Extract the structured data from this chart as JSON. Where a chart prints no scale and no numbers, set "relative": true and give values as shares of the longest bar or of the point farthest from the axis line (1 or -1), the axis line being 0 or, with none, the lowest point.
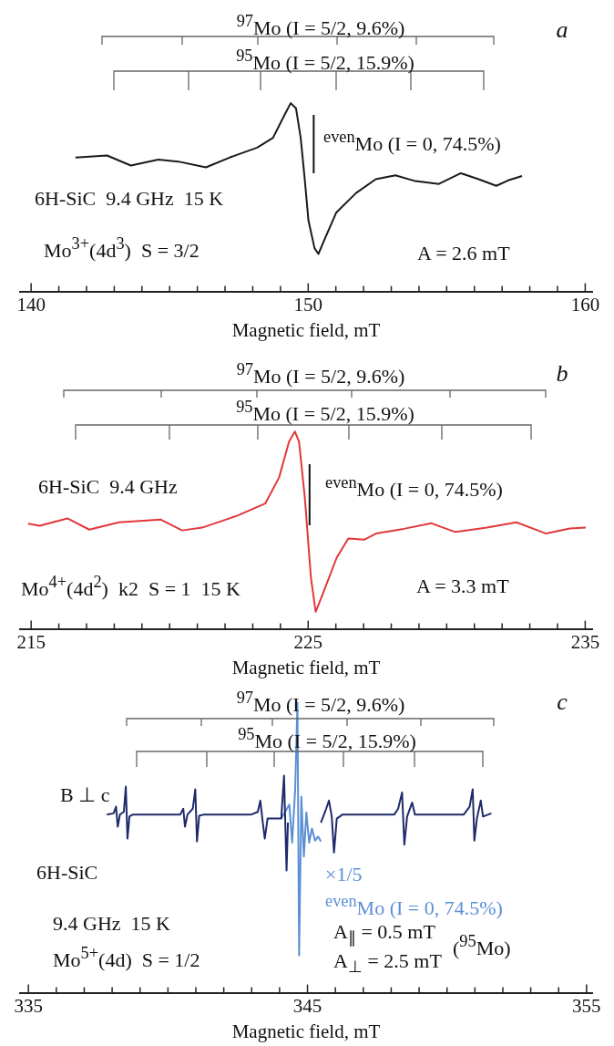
{
  "chart_data": [
    {
      "type": "line",
      "title": "a",
      "xlabel": "Magnetic field, mT",
      "relative": true,
      "tick_labels": "x",
      "xlim": [
        139.6,
        160.25
      ],
      "xticks": [
        140,
        {
          "value": 141,
          "label": null
        },
        {
          "value": 142,
          "label": null
        },
        {
          "value": 143,
          "label": null
        },
        {
          "value": 144,
          "label": null
        },
        {
          "value": 145,
          "label": null
        },
        {
          "value": 146,
          "label": null
        },
        {
          "value": 147,
          "label": null
        },
        {
          "value": 148,
          "label": null
        },
        {
          "value": 149,
          "label": null
        },
        150,
        {
          "value": 151,
          "label": null
        },
        {
          "value": 152,
          "label": null
        },
        {
          "value": 153,
          "label": null
        },
        {
          "value": 154,
          "label": null
        },
        {
          "value": 155,
          "label": null
        },
        {
          "value": 156,
          "label": null
        },
        {
          "value": 157,
          "label": null
        },
        {
          "value": 158,
          "label": null
        },
        {
          "value": 159,
          "label": null
        },
        160
      ],
      "ref_lines": [
        {
          "axis": "x",
          "value": 150.2
        }
      ],
      "annotations": [
        "$^{97}$Mo (I = 5/2, 9.6%)",
        "$^{95}$Mo (I = 5/2, 15.9%)",
        "6H-SiC  9.4 GHz  15 K",
        "Mo$^{3+}$(4d$^{3}$)  S = 3/2",
        "A = 2.6 mT",
        "$^{even}$Mo (I = 0, 74.5%)"
      ],
      "series": [
        {
          "color": "#1a1a1a",
          "x": [
            141.6,
            142.74,
            143.6,
            144.59,
            145.31,
            146.31,
            147.16,
            148.16,
            148.73,
            149.16,
            149.37,
            149.56,
            149.73,
            149.87,
            150.01,
            150.23,
            150.37,
            150.58,
            151.01,
            151.73,
            152.44,
            153.15,
            153.87,
            154.72,
            155.51,
            156.15,
            156.79,
            157.22,
            157.72
          ],
          "values": [
            0.711,
            0.722,
            0.669,
            0.7,
            0.69,
            0.659,
            0.711,
            0.764,
            0.816,
            0.941,
            1,
            0.973,
            0.816,
            0.607,
            0.377,
            0.23,
            0.199,
            0.272,
            0.418,
            0.523,
            0.596,
            0.617,
            0.586,
            0.571,
            0.628,
            0.596,
            0.561,
            0.59,
            0.613
          ]
        }
      ]
    },
    {
      "type": "line",
      "title": "b",
      "xlabel": "Magnetic field, mT",
      "relative": true,
      "tick_labels": "x",
      "xlim": [
        214.6,
        235.25
      ],
      "xticks": [
        215,
        {
          "value": 216,
          "label": null
        },
        {
          "value": 217,
          "label": null
        },
        {
          "value": 218,
          "label": null
        },
        {
          "value": 219,
          "label": null
        },
        {
          "value": 220,
          "label": null
        },
        {
          "value": 221,
          "label": null
        },
        {
          "value": 222,
          "label": null
        },
        {
          "value": 223,
          "label": null
        },
        {
          "value": 224,
          "label": null
        },
        225,
        {
          "value": 226,
          "label": null
        },
        {
          "value": 227,
          "label": null
        },
        {
          "value": 228,
          "label": null
        },
        {
          "value": 229,
          "label": null
        },
        {
          "value": 230,
          "label": null
        },
        {
          "value": 231,
          "label": null
        },
        {
          "value": 232,
          "label": null
        },
        {
          "value": 233,
          "label": null
        },
        {
          "value": 234,
          "label": null
        },
        235
      ],
      "ref_lines": [
        {
          "axis": "x",
          "value": 225.05
        }
      ],
      "annotations": [
        "$^{97}$Mo (I = 5/2, 9.6%)",
        "$^{95}$Mo (I = 5/2, 15.9%)",
        "6H-SiC  9.4 GHz",
        "Mo$^{4+}$(4d$^{2}$)  k2  S = 1  15 K",
        "A = 3.3 mT",
        "$^{even}$Mo (I = 0, 74.5%)"
      ],
      "series": [
        {
          "color": "#e0383a",
          "x": [
            214.89,
            215.31,
            216.31,
            217.1,
            218.17,
            219.67,
            220.45,
            221.17,
            222.45,
            223.45,
            223.95,
            224.31,
            224.52,
            224.67,
            224.88,
            225.1,
            225.27,
            225.53,
            226.03,
            226.45,
            227.02,
            227.45,
            228.45,
            229.45,
            230.31,
            231.45,
            232.52,
            233.59,
            234.45,
            235.02
          ],
          "values": [
            0.533,
            0.523,
            0.56,
            0.503,
            0.54,
            0.554,
            0.499,
            0.513,
            0.574,
            0.635,
            0.767,
            0.949,
            1,
            0.949,
            0.665,
            0.26,
            0.087,
            0.178,
            0.361,
            0.458,
            0.452,
            0.483,
            0.507,
            0.535,
            0.491,
            0.513,
            0.54,
            0.483,
            0.509,
            0.513
          ]
        }
      ]
    },
    {
      "type": "line",
      "title": "c",
      "xlabel": "Magnetic field, mT",
      "relative": true,
      "tick_labels": "x",
      "xlim": [
        334.7,
        355.2
      ],
      "xticks": [
        335,
        {
          "value": 336,
          "label": null
        },
        {
          "value": 337,
          "label": null
        },
        {
          "value": 338,
          "label": null
        },
        {
          "value": 339,
          "label": null
        },
        {
          "value": 340,
          "label": null
        },
        {
          "value": 341,
          "label": null
        },
        {
          "value": 342,
          "label": null
        },
        {
          "value": 343,
          "label": null
        },
        {
          "value": 344,
          "label": null
        },
        345,
        {
          "value": 346,
          "label": null
        },
        {
          "value": 347,
          "label": null
        },
        {
          "value": 348,
          "label": null
        },
        {
          "value": 349,
          "label": null
        },
        {
          "value": 350,
          "label": null
        },
        {
          "value": 351,
          "label": null
        },
        {
          "value": 352,
          "label": null
        },
        {
          "value": 353,
          "label": null
        },
        {
          "value": 354,
          "label": null
        },
        355
      ],
      "annotations": [
        "$^{97}$Mo (I = 5/2, 9.6%)",
        "$^{95}$Mo (I = 5/2, 15.9%)",
        "B ⊥ c",
        "6H-SiC",
        "9.4 GHz  15 K",
        "Mo$^{5+}$(4d)  S = 1/2",
        "$^{even}$Mo (I = 0, 74.5%)",
        "A$_{∥}$ = 0.5 mT",
        "A$_{⊥}$ = 2.5 mT",
        "($^{95}$Mo)"
      ],
      "series": [
        {
          "color": "#1e2a6b",
          "x": [
            337.81,
            338.05,
            338.14,
            338.2,
            338.28,
            338.42,
            338.49,
            338.55,
            338.62,
            338.74,
            340.44,
            340.55,
            340.61,
            340.7,
            340.89,
            340.98,
            341.04,
            341.12,
            341.29,
            342.99,
            343.22,
            343.31,
            343.39,
            343.47,
            343.57,
            343.85,
            344.06,
            344.16,
            344.25,
            344.3,
            345,
            345.48,
            345.67,
            345.77,
            345.87,
            345.95,
            346.05,
            346.26,
            348.11,
            348.25,
            348.39,
            348.47,
            348.57,
            348.75,
            348.85,
            348.96,
            350.6,
            350.81,
            350.92,
            350.98,
            351.07,
            351.21,
            351.29,
            351.59
          ],
          "values": [
            0.614,
            0.618,
            0.641,
            0.572,
            0.614,
            0.623,
            0.71,
            0.531,
            0.607,
            0.614,
            0.614,
            0.634,
            0.572,
            0.614,
            0.634,
            0.701,
            0.521,
            0.61,
            0.614,
            0.614,
            0.623,
            0.662,
            0.593,
            0.531,
            0.6,
            0.6,
            0.6,
            0.748,
            0.421,
            0.586,
            null,
            0.586,
            0.634,
            0.662,
            0.607,
            0.483,
            0.6,
            0.614,
            0.614,
            0.634,
            0.69,
            0.51,
            0.607,
            0.655,
            0.614,
            0.614,
            0.614,
            0.641,
            0.701,
            0.524,
            0.6,
            0.662,
            0.607,
            0.618
          ]
        },
        {
          "name": "×1/5",
          "color": "#5b8fd6",
          "x": [
            344.06,
            344.35,
            344.45,
            344.56,
            344.64,
            344.7,
            344.78,
            344.87,
            344.96,
            345.06,
            345.16,
            345.27,
            345.38,
            345.48
          ],
          "values": [
            0.6,
            0.648,
            0.517,
            0.703,
            1,
            0.128,
            0.676,
            0.469,
            0.621,
            0.517,
            0.566,
            0.524,
            0.538,
            0.521
          ]
        }
      ]
    }
  ]
}
